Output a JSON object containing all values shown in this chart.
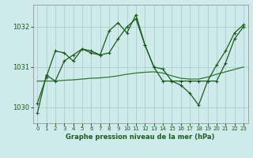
{
  "title": "Graphe pression niveau de la mer (hPa)",
  "bg_color": "#ceeaea",
  "grid_color": "#aacfcf",
  "line_color_dark": "#1a5c1a",
  "line_color_mid": "#2a7a2a",
  "xlim": [
    -0.5,
    23.5
  ],
  "ylim": [
    1029.6,
    1032.55
  ],
  "yticks": [
    1030,
    1031,
    1032
  ],
  "xticks": [
    0,
    1,
    2,
    3,
    4,
    5,
    6,
    7,
    8,
    9,
    10,
    11,
    12,
    13,
    14,
    15,
    16,
    17,
    18,
    19,
    20,
    21,
    22,
    23
  ],
  "spiky_x": [
    0,
    1,
    2,
    3,
    4,
    5,
    6,
    7,
    8,
    9,
    10,
    11,
    12,
    13,
    14,
    15,
    16,
    17,
    18,
    19,
    20,
    21,
    22,
    23
  ],
  "spiky_y": [
    1029.85,
    1030.8,
    1030.65,
    1031.15,
    1031.3,
    1031.45,
    1031.4,
    1031.3,
    1031.9,
    1032.1,
    1031.85,
    1032.3,
    1031.55,
    1031.0,
    1030.95,
    1030.65,
    1030.55,
    1030.35,
    1030.05,
    1030.65,
    1031.05,
    1031.4,
    1031.85,
    1032.05
  ],
  "middle_x": [
    0,
    1,
    2,
    3,
    4,
    5,
    6,
    7,
    8,
    9,
    10,
    11,
    12,
    13,
    14,
    15,
    16,
    17,
    18,
    19,
    20,
    21,
    22,
    23
  ],
  "middle_y": [
    1030.1,
    1030.75,
    1031.4,
    1031.35,
    1031.15,
    1031.45,
    1031.35,
    1031.3,
    1031.35,
    1031.7,
    1032.0,
    1032.2,
    1031.55,
    1031.0,
    1030.65,
    1030.65,
    1030.65,
    1030.65,
    1030.65,
    1030.65,
    1030.65,
    1031.1,
    1031.7,
    1032.0
  ],
  "smooth_x": [
    0,
    1,
    2,
    3,
    4,
    5,
    6,
    7,
    8,
    9,
    10,
    11,
    12,
    13,
    14,
    15,
    16,
    17,
    18,
    19,
    20,
    21,
    22,
    23
  ],
  "smooth_y": [
    1030.65,
    1030.65,
    1030.65,
    1030.67,
    1030.68,
    1030.7,
    1030.72,
    1030.73,
    1030.75,
    1030.78,
    1030.82,
    1030.85,
    1030.87,
    1030.88,
    1030.85,
    1030.78,
    1030.72,
    1030.7,
    1030.7,
    1030.75,
    1030.82,
    1030.88,
    1030.94,
    1031.0
  ]
}
